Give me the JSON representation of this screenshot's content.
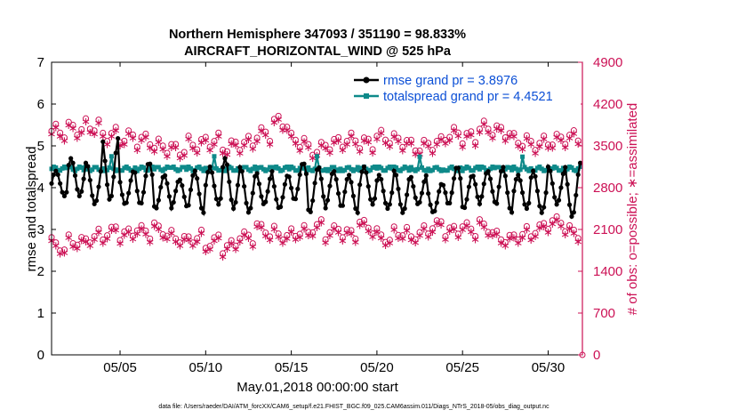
{
  "title_line1": "Northern Hemisphere 347093 / 351190 = 98.833%",
  "title_line2": "AIRCRAFT_HORIZONTAL_WIND @ 525 hPa",
  "colors": {
    "rmse": "#000000",
    "spread": "#0e8a8a",
    "obs": "#cc1155",
    "legend_text": "#0b4fd6"
  },
  "chart_data": {
    "type": "line",
    "title": "Northern Hemisphere 347093 / 351190 = 98.833% — AIRCRAFT_HORIZONTAL_WIND @ 525 hPa",
    "xlabel": "May.01,2018 00:00:00 start",
    "ylabel": "rmse and totalspread",
    "ylabel_right": "# of obs: o=possible; ∗=assimilated",
    "xlim": [
      1.0,
      32.0
    ],
    "ylim": [
      0,
      7
    ],
    "ylim_right": [
      0,
      4900
    ],
    "xticks": [
      5,
      10,
      15,
      20,
      25,
      30
    ],
    "xtick_labels": [
      "05/05",
      "05/10",
      "05/15",
      "05/20",
      "05/25",
      "05/30"
    ],
    "yticks": [
      0,
      1,
      2,
      3,
      4,
      5,
      6,
      7
    ],
    "yticks_right": [
      0,
      700,
      1400,
      2100,
      2800,
      3500,
      4200,
      4900
    ],
    "legend": [
      "rmse grand pr = 3.8976",
      "totalspread grand pr = 4.4521"
    ],
    "footer": "data file: /Users/raeder/DAI/ATM_forcXX/CAM6_setup/f.e21.FHIST_BGC.f09_025.CAM6assim.011/Diags_NTrS_2018-05/obs_diag_output.nc",
    "x_start": 1.0,
    "x_step": 0.125,
    "rmse_peaks": [
      4.4,
      4.7,
      4.6,
      5.2,
      4.4,
      4.6,
      4.3,
      4.2,
      4.4,
      4.5,
      4.7,
      4.5,
      4.4,
      4.3,
      4.6,
      4.5,
      4.4,
      4.3,
      4.5,
      4.3,
      4.4,
      4.3,
      4.1,
      4.5,
      4.3,
      4.4,
      4.5,
      4.3,
      4.4,
      4.5,
      4.6
    ],
    "rmse_troughs": [
      3.8,
      3.8,
      3.6,
      3.7,
      3.6,
      3.6,
      3.5,
      3.5,
      3.4,
      3.6,
      3.5,
      3.4,
      3.6,
      3.5,
      3.7,
      3.4,
      3.5,
      3.4,
      3.6,
      3.5,
      3.4,
      3.6,
      3.4,
      3.6,
      3.5,
      3.6,
      3.4,
      3.5,
      3.4,
      3.6,
      3.3
    ],
    "spread_base": 4.45,
    "possible_high": [
      3750,
      3800,
      3850,
      3700,
      3650,
      3600,
      3500,
      3450,
      3550,
      3600,
      3500,
      3550,
      3700,
      3900,
      3600,
      3450,
      3550,
      3600,
      3550,
      3650,
      3600,
      3500,
      3550,
      3700,
      3650,
      3800,
      3750,
      3600,
      3550,
      3600,
      3650
    ],
    "possible_low": [
      1850,
      1950,
      2000,
      2050,
      2000,
      2050,
      2100,
      2000,
      2000,
      1900,
      1800,
      1950,
      2100,
      2050,
      2100,
      2150,
      2050,
      2000,
      2150,
      2000,
      2100,
      2050,
      2150,
      2050,
      2100,
      2150,
      2000,
      2050,
      2100,
      2200,
      2050
    ],
    "obs_final_x": 32.0,
    "obs_final_y": 0
  }
}
